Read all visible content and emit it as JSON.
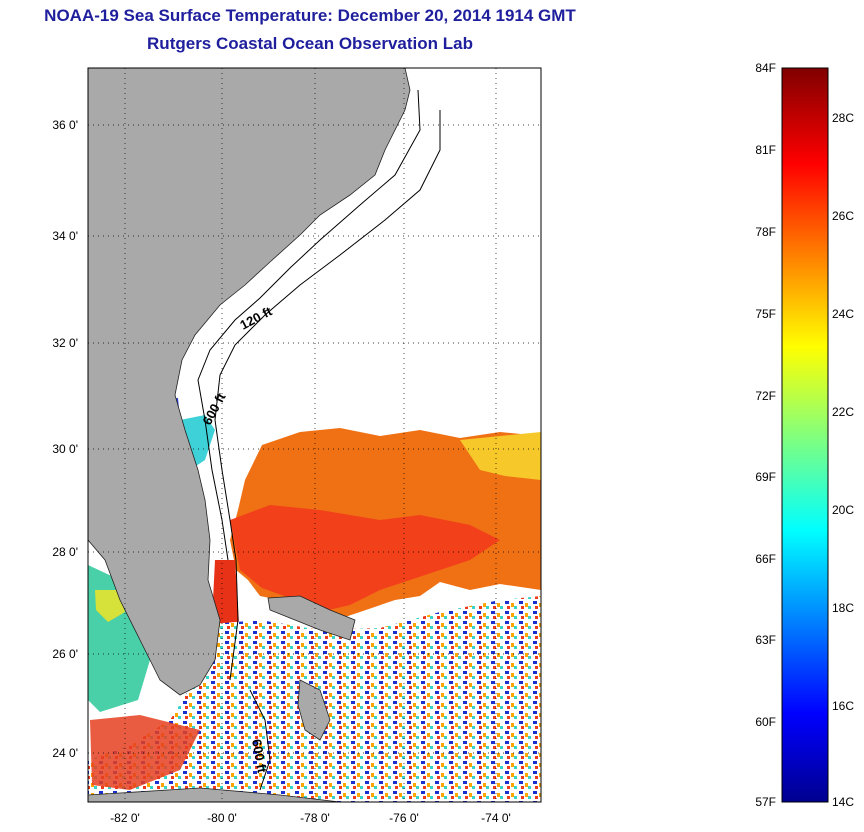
{
  "title_line1": "NOAA-19 Sea Surface Temperature:  December 20, 2014 1914 GMT",
  "title_line2": "Rutgers Coastal Ocean Observation Lab",
  "map": {
    "lat_labels": [
      "36 0'",
      "34 0'",
      "32 0'",
      "30 0'",
      "28 0'",
      "26 0'",
      "24 0'"
    ],
    "lon_labels": [
      "-82 0'",
      "-80 0'",
      "-78 0'",
      "-76 0'",
      "-74 0'"
    ],
    "contour_labels": [
      "120 ft",
      "600 ft",
      "600 ft"
    ],
    "land_color": "#a9a9a9",
    "gridlines": "dotted"
  },
  "colorbar": {
    "fahrenheit_labels": [
      "84F",
      "81F",
      "78F",
      "75F",
      "72F",
      "69F",
      "66F",
      "63F",
      "60F",
      "57F"
    ],
    "celsius_labels": [
      "28C",
      "26C",
      "24C",
      "22C",
      "20C",
      "18C",
      "16C",
      "14C"
    ],
    "min_c": 14,
    "max_c": 29,
    "colormap": "jet"
  }
}
